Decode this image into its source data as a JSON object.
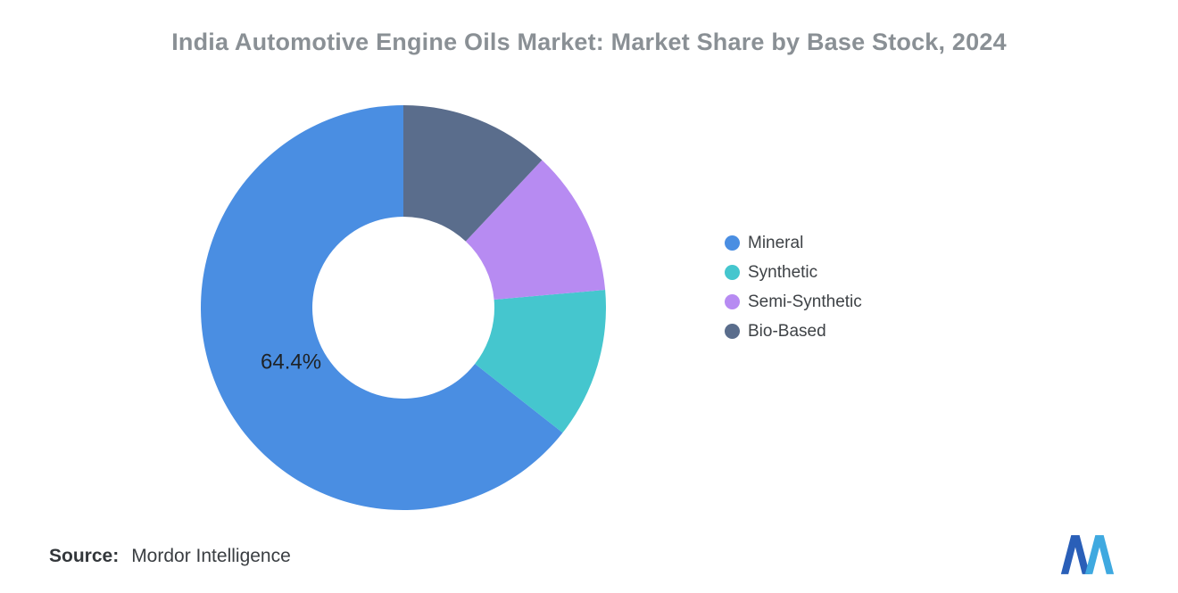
{
  "title": "India Automotive Engine Oils Market: Market Share by Base Stock, 2024",
  "source": {
    "label": "Source:",
    "value": "Mordor Intelligence"
  },
  "logo": {
    "name": "mordor-intelligence-logo-mark",
    "dark_blue": "#2A5FB8",
    "light_blue": "#3FA9E0"
  },
  "chart_data": {
    "type": "pie",
    "donut": true,
    "title": "India Automotive Engine Oils Market: Market Share by Base Stock, 2024",
    "legend_position": "right",
    "start_angle_deg": 0,
    "direction": "counterclockwise",
    "background": "#ffffff",
    "segments": [
      {
        "label": "Mineral",
        "value": 64.4,
        "color": "#4A8EE2",
        "data_label": "64.4%"
      },
      {
        "label": "Synthetic",
        "value": 12.0,
        "color": "#45C6CE",
        "data_label": ""
      },
      {
        "label": "Semi-Synthetic",
        "value": 11.6,
        "color": "#B78BF2",
        "data_label": ""
      },
      {
        "label": "Bio-Based",
        "value": 12.0,
        "color": "#5A6D8C",
        "data_label": ""
      }
    ]
  }
}
